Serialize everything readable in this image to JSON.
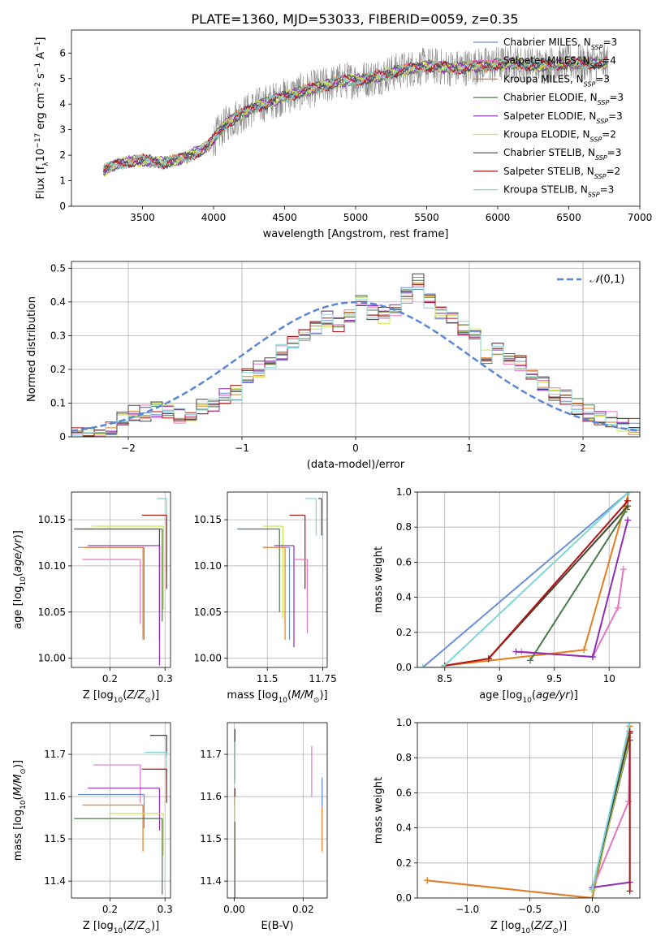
{
  "title": "PLATE=1360, MJD=53033, FIBERID=0059, z=0.35",
  "colors": {
    "Chabrier MILES": "#6a8fd8",
    "Salpeter MILES": "#e377c2",
    "Kroupa MILES": "#e67e22",
    "Chabrier ELODIE": "#4a7a4a",
    "Salpeter ELODIE": "#8e2bb8",
    "Kroupa ELODIE": "#c8e64a",
    "Chabrier STELIB": "#444444",
    "Salpeter STELIB": "#b11212",
    "Kroupa STELIB": "#7fd6d6"
  },
  "chart_data": [
    {
      "id": "spectrum",
      "type": "line",
      "xlabel": "wavelength [Angstrom, rest frame]",
      "ylabel": "Flux [f",
      "xlim": [
        3000,
        7000
      ],
      "ylim": [
        0,
        6.9
      ],
      "xticks": [
        3500,
        4000,
        4500,
        5000,
        5500,
        6000,
        6500,
        7000
      ],
      "yticks": [
        0,
        1,
        2,
        3,
        4,
        5,
        6
      ],
      "legend_position": "top-right",
      "legend": [
        {
          "model": "Chabrier MILES",
          "label": "Chabrier MILES, N",
          "n": "3"
        },
        {
          "model": "Salpeter MILES",
          "label": "Salpeter MILES, N",
          "n": "4"
        },
        {
          "model": "Kroupa MILES",
          "label": "Kroupa MILES, N",
          "n": "3"
        },
        {
          "model": "Chabrier ELODIE",
          "label": "Chabrier ELODIE, N",
          "n": "3"
        },
        {
          "model": "Salpeter ELODIE",
          "label": "Salpeter ELODIE, N",
          "n": "3"
        },
        {
          "model": "Kroupa ELODIE",
          "label": "Kroupa ELODIE, N",
          "n": "2"
        },
        {
          "model": "Chabrier STELIB",
          "label": "Chabrier STELIB, N",
          "n": "3"
        },
        {
          "model": "Salpeter STELIB",
          "label": "Salpeter STELIB, N",
          "n": "2"
        },
        {
          "model": "Kroupa STELIB",
          "label": "Kroupa STELIB, N",
          "n": "3"
        }
      ],
      "data_wavelength_range": [
        3225,
        6775
      ],
      "model_anchors_x": [
        3225,
        3350,
        3500,
        3650,
        3800,
        3950,
        4100,
        4300,
        4500,
        4700,
        4900,
        5100,
        5300,
        5500,
        5700,
        5900,
        6100,
        6300,
        6500,
        6700,
        6775
      ],
      "model_anchors_y": [
        1.4,
        1.7,
        1.8,
        1.7,
        1.9,
        2.3,
        3.3,
        3.9,
        4.3,
        4.6,
        4.9,
        5.0,
        5.3,
        5.5,
        5.4,
        5.5,
        5.6,
        5.5,
        5.6,
        5.6,
        5.6
      ]
    },
    {
      "id": "residuals",
      "type": "histogram",
      "xlabel": "(data-model)/error",
      "ylabel": "Normed distribution",
      "xlim": [
        -2.5,
        2.5
      ],
      "ylim": [
        0,
        0.52
      ],
      "xticks": [
        -2,
        -1,
        0,
        1,
        2
      ],
      "yticks": [
        0.0,
        0.1,
        0.2,
        0.3,
        0.4,
        0.5
      ],
      "grid": true,
      "legend_position": "top-right",
      "gaussian_label": "(0,1)",
      "gaussian_color": "#5b86d6",
      "bin_width": 0.1,
      "bin_start": -2.5,
      "base_profile": [
        0.01,
        0.01,
        0.02,
        0.02,
        0.05,
        0.07,
        0.07,
        0.08,
        0.07,
        0.06,
        0.07,
        0.09,
        0.1,
        0.12,
        0.13,
        0.18,
        0.2,
        0.22,
        0.25,
        0.28,
        0.3,
        0.32,
        0.35,
        0.33,
        0.36,
        0.4,
        0.37,
        0.36,
        0.38,
        0.42,
        0.46,
        0.4,
        0.37,
        0.35,
        0.32,
        0.3,
        0.24,
        0.26,
        0.24,
        0.22,
        0.18,
        0.16,
        0.13,
        0.12,
        0.09,
        0.07,
        0.06,
        0.05,
        0.04,
        0.03
      ]
    },
    {
      "id": "age-vs-Z",
      "type": "errorbar",
      "xlabel": "Z [log",
      "ylabel": "age  [log",
      "xlim": [
        0.13,
        0.31
      ],
      "ylim": [
        9.99,
        10.18
      ],
      "xticks": [
        0.2,
        0.3
      ],
      "yticks": [
        10.0,
        10.05,
        10.1,
        10.15
      ],
      "grid": true,
      "points": [
        {
          "model": "Kroupa STELIB",
          "x": 0.303,
          "y": 10.173,
          "xerr": [
            0.018,
            0.0
          ],
          "yerr": [
            0.08,
            0.0
          ]
        },
        {
          "model": "Salpeter STELIB",
          "x": 0.303,
          "y": 10.155,
          "xerr": [
            0.045,
            0.0
          ],
          "yerr": [
            0.08,
            0.0
          ]
        },
        {
          "model": "Kroupa ELODIE",
          "x": 0.297,
          "y": 10.143,
          "xerr": [
            0.13,
            0.0
          ],
          "yerr": [
            0.09,
            0.0
          ]
        },
        {
          "model": "Chabrier STELIB",
          "x": 0.29,
          "y": 10.14,
          "xerr": [
            0.155,
            0.0
          ],
          "yerr": [
            0.12,
            0.0
          ]
        },
        {
          "model": "Chabrier ELODIE",
          "x": 0.295,
          "y": 10.14,
          "xerr": [
            0.16,
            0.0
          ],
          "yerr": [
            0.1,
            0.0
          ]
        },
        {
          "model": "Salpeter ELODIE",
          "x": 0.29,
          "y": 10.122,
          "xerr": [
            0.13,
            0.0
          ],
          "yerr": [
            0.13,
            0.0
          ]
        },
        {
          "model": "Chabrier MILES",
          "x": 0.262,
          "y": 10.12,
          "xerr": [
            0.12,
            0.0
          ],
          "yerr": [
            0.1,
            0.0
          ]
        },
        {
          "model": "Kroupa MILES",
          "x": 0.26,
          "y": 10.12,
          "xerr": [
            0.11,
            0.0
          ],
          "yerr": [
            0.1,
            0.0
          ]
        },
        {
          "model": "Salpeter MILES",
          "x": 0.255,
          "y": 10.107,
          "xerr": [
            0.105,
            0.0
          ],
          "yerr": [
            0.07,
            0.0
          ]
        }
      ]
    },
    {
      "id": "age-vs-mass",
      "type": "errorbar",
      "xlabel": "mass [log",
      "ylabel": "",
      "xlim": [
        11.32,
        11.77
      ],
      "ylim": [
        9.99,
        10.18
      ],
      "xticks": [
        11.5,
        11.75
      ],
      "yticks": [
        10.0,
        10.05,
        10.1,
        10.15
      ],
      "grid": true,
      "points": [
        {
          "model": "Kroupa STELIB",
          "x": 11.72,
          "y": 10.173,
          "xerr": [
            0.05,
            0.0
          ],
          "yerr": [
            0.04,
            0.0
          ]
        },
        {
          "model": "Chabrier STELIB",
          "x": 11.745,
          "y": 10.173,
          "xerr": [
            0.015,
            0.0
          ],
          "yerr": [
            0.04,
            0.0
          ]
        },
        {
          "model": "Salpeter STELIB",
          "x": 11.67,
          "y": 10.155,
          "xerr": [
            0.07,
            0.0
          ],
          "yerr": [
            0.08,
            0.0
          ]
        },
        {
          "model": "Kroupa ELODIE",
          "x": 11.57,
          "y": 10.143,
          "xerr": [
            0.09,
            0.0
          ],
          "yerr": [
            0.1,
            0.0
          ]
        },
        {
          "model": "Chabrier ELODIE",
          "x": 11.555,
          "y": 10.14,
          "xerr": [
            0.19,
            0.0
          ],
          "yerr": [
            0.09,
            0.0
          ]
        },
        {
          "model": "Salpeter ELODIE",
          "x": 11.62,
          "y": 10.122,
          "xerr": [
            0.09,
            0.0
          ],
          "yerr": [
            0.11,
            0.0
          ]
        },
        {
          "model": "Chabrier MILES",
          "x": 11.6,
          "y": 10.12,
          "xerr": [
            0.12,
            0.0
          ],
          "yerr": [
            0.1,
            0.0
          ]
        },
        {
          "model": "Kroupa MILES",
          "x": 11.58,
          "y": 10.12,
          "xerr": [
            0.1,
            0.0
          ],
          "yerr": [
            0.1,
            0.0
          ]
        },
        {
          "model": "Salpeter MILES",
          "x": 11.68,
          "y": 10.107,
          "xerr": [
            0.06,
            0.0
          ],
          "yerr": [
            0.08,
            0.0
          ]
        }
      ]
    },
    {
      "id": "massweight-vs-age",
      "type": "line",
      "xlabel": "age  [log",
      "ylabel": "mass weight",
      "xlim": [
        8.25,
        10.28
      ],
      "ylim": [
        0.0,
        1.0
      ],
      "xticks": [
        8.5,
        9.0,
        9.5,
        10.0
      ],
      "yticks": [
        0.0,
        0.2,
        0.4,
        0.6,
        0.8,
        1.0
      ],
      "grid": true,
      "series": [
        {
          "model": "Chabrier MILES",
          "x": [
            8.3,
            10.18
          ],
          "y": [
            0.0,
            1.0
          ]
        },
        {
          "model": "Salpeter MILES",
          "x": [
            9.2,
            9.85,
            10.08,
            10.13
          ],
          "y": [
            0.09,
            0.06,
            0.34,
            0.56
          ]
        },
        {
          "model": "Kroupa MILES",
          "x": [
            8.5,
            9.77,
            10.18
          ],
          "y": [
            0.01,
            0.1,
            1.0
          ]
        },
        {
          "model": "Chabrier ELODIE",
          "x": [
            9.28,
            10.16
          ],
          "y": [
            0.04,
            0.9
          ]
        },
        {
          "model": "Salpeter ELODIE",
          "x": [
            9.15,
            9.85,
            10.17
          ],
          "y": [
            0.09,
            0.06,
            0.84
          ]
        },
        {
          "model": "Kroupa ELODIE",
          "x": [
            8.9,
            10.16
          ],
          "y": [
            0.05,
            0.91
          ]
        },
        {
          "model": "Chabrier STELIB",
          "x": [
            8.9,
            10.17
          ],
          "y": [
            0.05,
            0.92
          ]
        },
        {
          "model": "Salpeter STELIB",
          "x": [
            8.5,
            8.9,
            10.17
          ],
          "y": [
            0.01,
            0.05,
            0.95
          ]
        },
        {
          "model": "Kroupa STELIB",
          "x": [
            8.3,
            8.48,
            10.18
          ],
          "y": [
            0.0,
            0.0,
            1.0
          ]
        }
      ]
    },
    {
      "id": "mass-vs-Z",
      "type": "errorbar",
      "xlabel": "Z [log",
      "ylabel": "mass [log",
      "xlim": [
        0.13,
        0.31
      ],
      "ylim": [
        11.36,
        11.775
      ],
      "xticks": [
        0.2,
        0.3
      ],
      "yticks": [
        11.4,
        11.5,
        11.6,
        11.7
      ],
      "grid": true,
      "points": [
        {
          "model": "Chabrier STELIB",
          "x": 0.303,
          "y": 11.745,
          "xerr": [
            0.03,
            0.0
          ],
          "yerr": [
            0.05,
            0.0
          ]
        },
        {
          "model": "Kroupa STELIB",
          "x": 0.303,
          "y": 11.705,
          "xerr": [
            0.04,
            0.0
          ],
          "yerr": [
            0.07,
            0.0
          ]
        },
        {
          "model": "Salpeter MILES",
          "x": 0.255,
          "y": 11.675,
          "xerr": [
            0.085,
            0.0
          ],
          "yerr": [
            0.09,
            0.0
          ]
        },
        {
          "model": "Salpeter STELIB",
          "x": 0.303,
          "y": 11.665,
          "xerr": [
            0.045,
            0.0
          ],
          "yerr": [
            0.08,
            0.0
          ]
        },
        {
          "model": "Salpeter ELODIE",
          "x": 0.29,
          "y": 11.62,
          "xerr": [
            0.13,
            0.0
          ],
          "yerr": [
            0.1,
            0.0
          ]
        },
        {
          "model": "Chabrier MILES",
          "x": 0.262,
          "y": 11.605,
          "xerr": [
            0.12,
            0.0
          ],
          "yerr": [
            0.08,
            0.0
          ]
        },
        {
          "model": "Kroupa MILES",
          "x": 0.26,
          "y": 11.58,
          "xerr": [
            0.11,
            0.0
          ],
          "yerr": [
            0.11,
            0.0
          ]
        },
        {
          "model": "Kroupa ELODIE",
          "x": 0.297,
          "y": 11.56,
          "xerr": [
            0.1,
            0.0
          ],
          "yerr": [
            0.1,
            0.0
          ]
        },
        {
          "model": "Chabrier ELODIE",
          "x": 0.295,
          "y": 11.548,
          "xerr": [
            0.16,
            0.0
          ],
          "yerr": [
            0.18,
            0.0
          ]
        }
      ]
    },
    {
      "id": "mass-vs-EBV",
      "type": "errorbar",
      "xlabel": "E(B-V)",
      "ylabel": "",
      "xlim": [
        -0.002,
        0.027
      ],
      "ylim": [
        11.36,
        11.775
      ],
      "xticks": [
        0.0,
        0.02
      ],
      "xticklabels": [
        "0.00",
        "0.02"
      ],
      "yticks": [
        11.4,
        11.5,
        11.6,
        11.7
      ],
      "grid": true,
      "points": [
        {
          "model": "Chabrier STELIB",
          "x": 0.0002,
          "y": 11.7,
          "xerr": [
            0.0,
            0.0
          ],
          "yerr": [
            0.06,
            0.06
          ]
        },
        {
          "model": "Kroupa STELIB",
          "x": 0.0002,
          "y": 11.68,
          "xerr": [
            0.0,
            0.0
          ],
          "yerr": [
            0.05,
            0.05
          ]
        },
        {
          "model": "Salpeter STELIB",
          "x": 0.0002,
          "y": 11.6,
          "xerr": [
            0.0,
            0.0
          ],
          "yerr": [
            0.02,
            0.02
          ]
        },
        {
          "model": "Kroupa ELODIE",
          "x": 0.0002,
          "y": 11.53,
          "xerr": [
            0.0,
            0.0
          ],
          "yerr": [
            0.07,
            0.07
          ]
        },
        {
          "model": "Chabrier ELODIE",
          "x": 0.0002,
          "y": 11.45,
          "xerr": [
            0.0,
            0.0
          ],
          "yerr": [
            0.09,
            0.09
          ]
        },
        {
          "model": "Salpeter MILES",
          "x": 0.0225,
          "y": 11.66,
          "xerr": [
            0.0,
            0.0
          ],
          "yerr": [
            0.06,
            0.06
          ]
        },
        {
          "model": "Kroupa MILES",
          "x": 0.0255,
          "y": 11.55,
          "xerr": [
            0.0,
            0.0
          ],
          "yerr": [
            0.08,
            0.08
          ]
        },
        {
          "model": "Chabrier MILES",
          "x": 0.0255,
          "y": 11.61,
          "xerr": [
            0.0,
            0.0
          ],
          "yerr": [
            0.035,
            0.035
          ]
        }
      ]
    },
    {
      "id": "massweight-vs-Z",
      "type": "line",
      "xlabel": "Z [log",
      "ylabel": "mass weight",
      "xlim": [
        -1.4,
        0.38
      ],
      "ylim": [
        0.0,
        1.0
      ],
      "xticks": [
        -1.0,
        -0.5,
        0.0
      ],
      "xticklabels": [
        "−1.0",
        "−0.5",
        "0.0"
      ],
      "yticks": [
        0.0,
        0.2,
        0.4,
        0.6,
        0.8,
        1.0
      ],
      "grid": true,
      "series": [
        {
          "model": "Chabrier MILES",
          "x": [
            -1.32,
            0.0,
            0.3
          ],
          "y": [
            0.1,
            0.0,
            1.0
          ]
        },
        {
          "model": "Kroupa MILES",
          "x": [
            -1.32,
            0.0,
            0.3
          ],
          "y": [
            0.1,
            0.0,
            0.98
          ]
        },
        {
          "model": "Salpeter MILES",
          "x": [
            0.0,
            0.29,
            0.3
          ],
          "y": [
            0.05,
            0.55,
            0.9
          ]
        },
        {
          "model": "Salpeter ELODIE",
          "x": [
            0.0,
            0.3
          ],
          "y": [
            0.06,
            0.09
          ]
        },
        {
          "model": "Chabrier ELODIE",
          "x": [
            0.0,
            0.3
          ],
          "y": [
            0.04,
            0.9
          ]
        },
        {
          "model": "Kroupa ELODIE",
          "x": [
            0.0,
            0.3
          ],
          "y": [
            0.04,
            0.92
          ]
        },
        {
          "model": "Chabrier STELIB",
          "x": [
            0.0,
            0.3
          ],
          "y": [
            0.05,
            0.94
          ]
        },
        {
          "model": "Salpeter STELIB",
          "x": [
            0.3,
            0.3
          ],
          "y": [
            0.04,
            0.95
          ]
        },
        {
          "model": "Kroupa STELIB",
          "x": [
            0.0,
            0.3
          ],
          "y": [
            0.05,
            1.0
          ]
        }
      ]
    }
  ]
}
